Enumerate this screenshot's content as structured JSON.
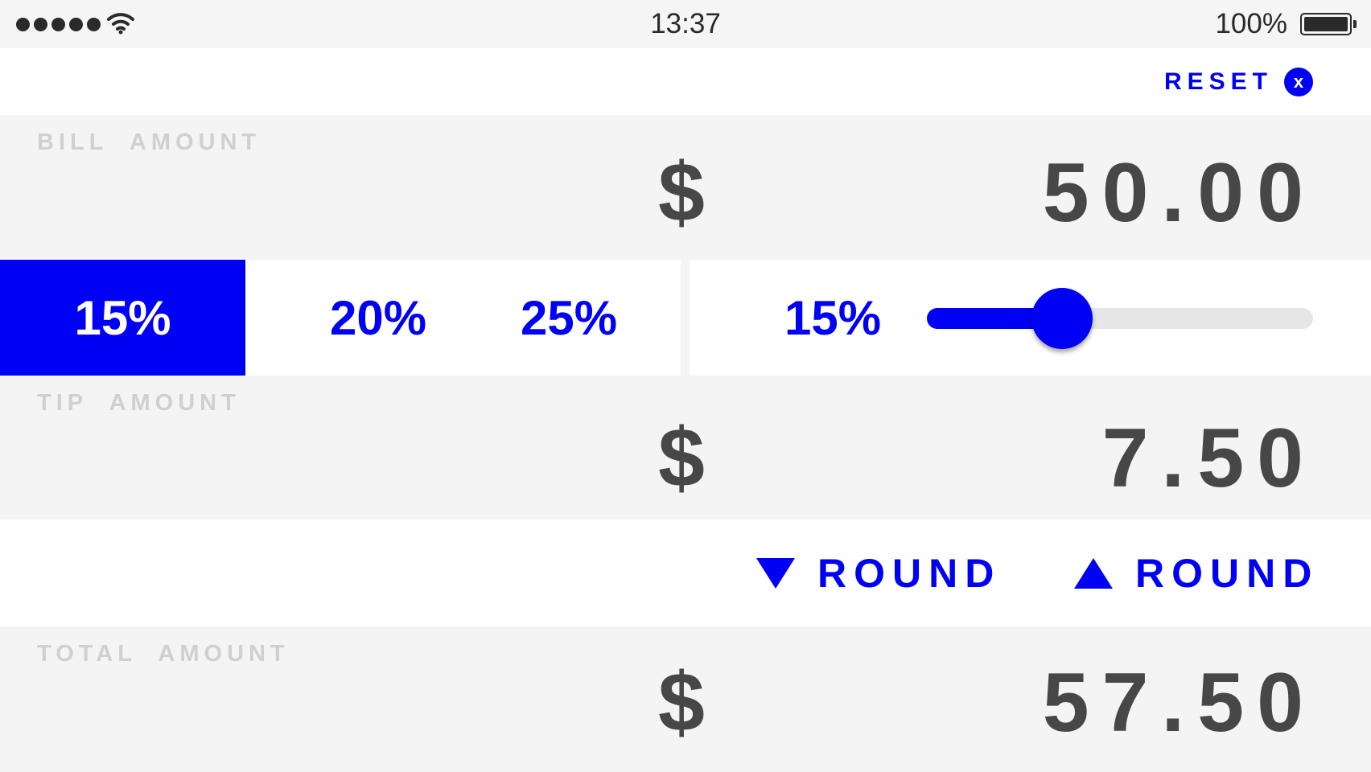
{
  "status_bar": {
    "time": "13:37",
    "battery_percent": "100%",
    "signal_bars": 5,
    "icons": [
      "signal-dots-icon",
      "wifi-icon",
      "battery-icon"
    ]
  },
  "reset": {
    "label": "RESET",
    "icon_glyph": "x",
    "icon": "close-circle-icon"
  },
  "bill": {
    "label": "BILL AMOUNT",
    "currency": "$",
    "value": "50.00"
  },
  "tip_selector": {
    "options": [
      {
        "label": "15%",
        "selected": true
      },
      {
        "label": "20%",
        "selected": false
      },
      {
        "label": "25%",
        "selected": false
      }
    ],
    "slider": {
      "value_label": "15%",
      "position_fraction": 0.35
    }
  },
  "tip": {
    "label": "TIP AMOUNT",
    "currency": "$",
    "value": "7.50"
  },
  "rounding": {
    "down_label": "ROUND",
    "down_icon": "triangle-down-icon",
    "up_label": "ROUND",
    "up_icon": "triangle-up-icon"
  },
  "total": {
    "label": "TOTAL AMOUNT",
    "currency": "$",
    "value": "57.50"
  },
  "colors": {
    "accent": "#0000f5",
    "panel_bg": "#f4f4f4",
    "value_text": "#474747",
    "label_text": "#d0d0d0"
  }
}
